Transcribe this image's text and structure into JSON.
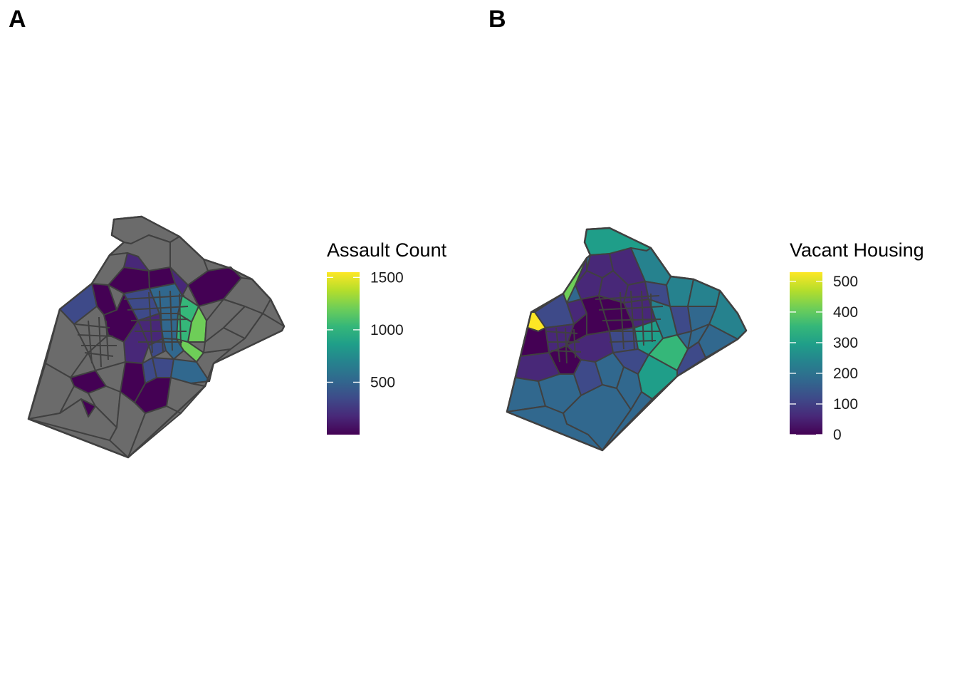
{
  "colors": {
    "no_data": "#6b6b6b",
    "border": "#404040",
    "viridis": [
      "#440154",
      "#482878",
      "#3e4a89",
      "#31688e",
      "#26828e",
      "#1f9e89",
      "#35b779",
      "#6ece58",
      "#b5de2b",
      "#fde725"
    ]
  },
  "panels": [
    {
      "tag": "A",
      "legend": {
        "title": "Assault Count",
        "min": 0,
        "max": 1550,
        "ticks": [
          {
            "value": 500,
            "label": "500"
          },
          {
            "value": 1000,
            "label": "1000"
          },
          {
            "value": 1500,
            "label": "1500"
          }
        ]
      }
    },
    {
      "tag": "B",
      "legend": {
        "title": "Vacant Housing",
        "min": 0,
        "max": 530,
        "ticks": [
          {
            "value": 0,
            "label": "0"
          },
          {
            "value": 100,
            "label": "100"
          },
          {
            "value": 200,
            "label": "200"
          },
          {
            "value": 300,
            "label": "300"
          },
          {
            "value": 400,
            "label": "400"
          },
          {
            "value": 500,
            "label": "500"
          }
        ]
      }
    }
  ]
}
